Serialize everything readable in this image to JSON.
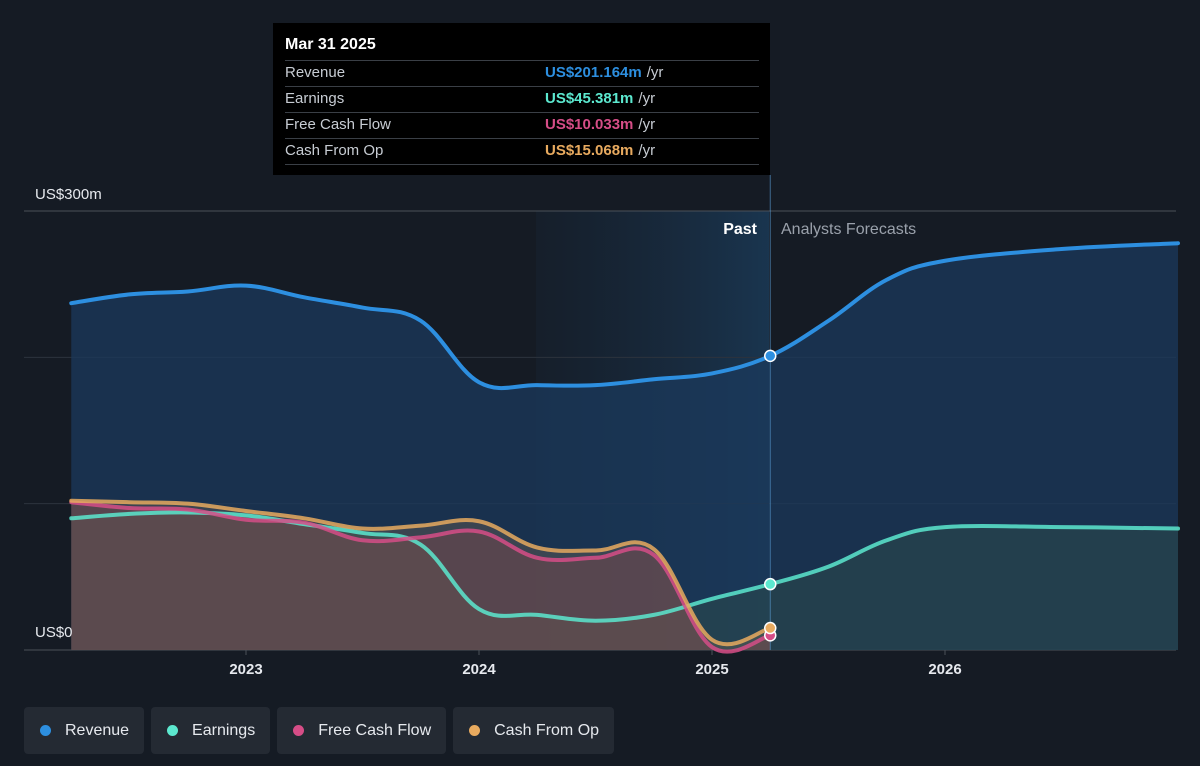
{
  "chart_data": {
    "type": "area",
    "y_unit_labels": {
      "top": "US$300m",
      "bottom": "US$0"
    },
    "ylim": [
      0,
      300
    ],
    "x_ticks": [
      "2023",
      "2024",
      "2025",
      "2026"
    ],
    "past_label": "Past",
    "forecast_label": "Analysts Forecasts",
    "marker_date": 2025.25,
    "series": [
      {
        "name": "Revenue",
        "color": "#2d8fe0",
        "x": [
          2022.25,
          2022.5,
          2022.75,
          2023.0,
          2023.25,
          2023.5,
          2023.75,
          2024.0,
          2024.25,
          2024.5,
          2024.75,
          2025.0,
          2025.25,
          2025.5,
          2025.75,
          2026.0,
          2026.5,
          2027.0
        ],
        "y": [
          237,
          243,
          245,
          249,
          241,
          234,
          225,
          183,
          181,
          181,
          185,
          189,
          201,
          225,
          253,
          266,
          274,
          278
        ]
      },
      {
        "name": "Earnings",
        "color": "#5ce8cf",
        "x": [
          2022.25,
          2022.5,
          2022.75,
          2023.0,
          2023.25,
          2023.5,
          2023.75,
          2024.0,
          2024.25,
          2024.5,
          2024.75,
          2025.0,
          2025.25,
          2025.5,
          2025.75,
          2026.0,
          2026.5,
          2027.0
        ],
        "y": [
          90,
          93,
          94,
          92,
          86,
          80,
          72,
          28,
          24,
          20,
          24,
          35,
          45,
          57,
          75,
          84,
          84,
          83
        ]
      },
      {
        "name": "Free Cash Flow",
        "color": "#d64d87",
        "x": [
          2022.25,
          2022.5,
          2022.75,
          2023.0,
          2023.25,
          2023.5,
          2023.75,
          2024.0,
          2024.25,
          2024.5,
          2024.75,
          2025.0,
          2025.25
        ],
        "y": [
          101,
          97,
          96,
          89,
          87,
          75,
          77,
          81,
          63,
          63,
          65,
          2,
          10
        ]
      },
      {
        "name": "Cash From Op",
        "color": "#e8aa5f",
        "x": [
          2022.25,
          2022.5,
          2022.75,
          2023.0,
          2023.25,
          2023.5,
          2023.75,
          2024.0,
          2024.25,
          2024.5,
          2024.75,
          2025.0,
          2025.25
        ],
        "y": [
          102,
          101,
          100,
          95,
          90,
          83,
          85,
          88,
          70,
          68,
          69,
          7,
          15
        ]
      }
    ]
  },
  "tooltip": {
    "date": "Mar 31 2025",
    "rows": [
      {
        "label": "Revenue",
        "value": "US$201.164m",
        "unit": "/yr",
        "color": "#2d8fe0"
      },
      {
        "label": "Earnings",
        "value": "US$45.381m",
        "unit": "/yr",
        "color": "#5ce8cf"
      },
      {
        "label": "Free Cash Flow",
        "value": "US$10.033m",
        "unit": "/yr",
        "color": "#d64d87"
      },
      {
        "label": "Cash From Op",
        "value": "US$15.068m",
        "unit": "/yr",
        "color": "#e8aa5f"
      }
    ]
  },
  "legend": [
    {
      "label": "Revenue",
      "color": "#2d8fe0"
    },
    {
      "label": "Earnings",
      "color": "#5ce8cf"
    },
    {
      "label": "Free Cash Flow",
      "color": "#d64d87"
    },
    {
      "label": "Cash From Op",
      "color": "#e8aa5f"
    }
  ]
}
